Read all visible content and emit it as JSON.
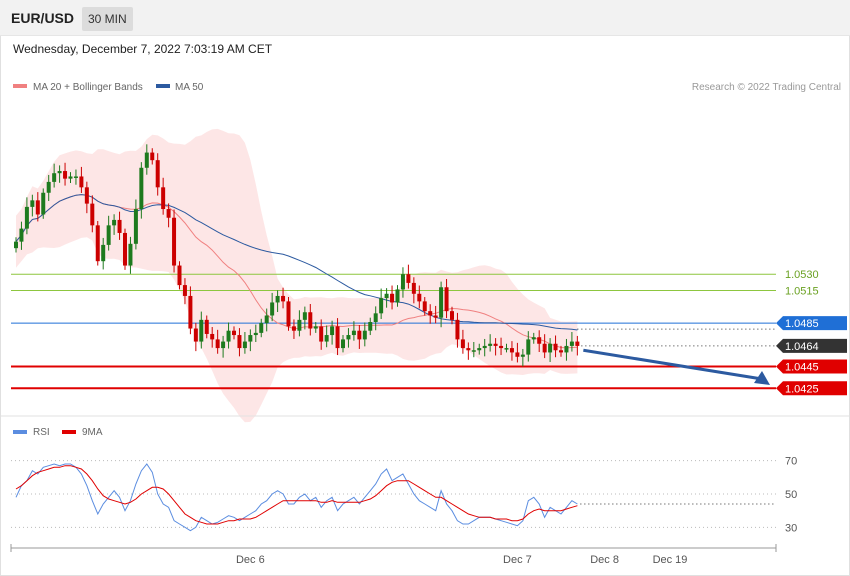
{
  "header": {
    "symbol": "EUR/USD",
    "timeframe": "30 MIN",
    "datetime": "Wednesday, December 7, 2022 7:03:19 AM CET"
  },
  "legend": {
    "ma20_label": "MA 20 + Bollinger Bands",
    "ma50_label": "MA 50",
    "copyright": "Research © 2022 Trading Central",
    "rsi_label": "RSI",
    "rsi_ma_label": "9MA"
  },
  "colors": {
    "bull": "#1e7a1e",
    "bear": "#cc0000",
    "ma20": "#f08080",
    "ma50": "#2c5aa0",
    "band_fill": "#fde3e3",
    "resistance": "#8dc63f",
    "pivot": "#1f6fd6",
    "support": "#e00000",
    "last_price_bg": "#333333",
    "rsi": "#5b8de0",
    "rsi_ma": "#e00000",
    "arrow": "#2c5aa0"
  },
  "chart_data": [
    {
      "type": "candlestick",
      "title": "",
      "ylim": [
        1.0405,
        1.0695
      ],
      "levels": [
        {
          "value": 1.053,
          "label": "1.0530",
          "kind": "resistance"
        },
        {
          "value": 1.0515,
          "label": "1.0515",
          "kind": "resistance"
        },
        {
          "value": 1.0485,
          "label": "1.0485",
          "kind": "pivot"
        },
        {
          "value": 1.0445,
          "label": "1.0445",
          "kind": "support"
        },
        {
          "value": 1.0425,
          "label": "1.0425",
          "kind": "support"
        }
      ],
      "last_price": {
        "value": 1.0464,
        "label": "1.0464"
      },
      "forecast_arrow": {
        "from": 1.046,
        "to": 1.0428
      },
      "closes": [
        1.056,
        1.0572,
        1.0592,
        1.0598,
        1.0585,
        1.0605,
        1.0615,
        1.0623,
        1.0625,
        1.0618,
        1.062,
        1.062,
        1.061,
        1.0595,
        1.0575,
        1.0542,
        1.0557,
        1.0575,
        1.058,
        1.0568,
        1.0538,
        1.0558,
        1.059,
        1.0628,
        1.0642,
        1.0635,
        1.061,
        1.059,
        1.0582,
        1.0538,
        1.052,
        1.051,
        1.048,
        1.0468,
        1.0488,
        1.0475,
        1.047,
        1.0462,
        1.0468,
        1.0478,
        1.0474,
        1.0462,
        1.0468,
        1.0474,
        1.0476,
        1.0485,
        1.0492,
        1.0504,
        1.051,
        1.0505,
        1.0482,
        1.0478,
        1.0488,
        1.0495,
        1.048,
        1.0482,
        1.0468,
        1.0474,
        1.0482,
        1.0462,
        1.047,
        1.0474,
        1.0478,
        1.047,
        1.0478,
        1.0486,
        1.0494,
        1.0508,
        1.0512,
        1.0504,
        1.0516,
        1.053,
        1.0522,
        1.0512,
        1.0505,
        1.0496,
        1.0492,
        1.049,
        1.0518,
        1.0496,
        1.0488,
        1.047,
        1.0462,
        1.046,
        1.046,
        1.0462,
        1.0464,
        1.0466,
        1.0464,
        1.0462,
        1.0462,
        1.0458,
        1.0454,
        1.0456,
        1.047,
        1.0472,
        1.0466,
        1.0458,
        1.0466,
        1.046,
        1.0458,
        1.0464,
        1.0468,
        1.0464
      ],
      "x_ticks": [
        {
          "index": 43,
          "label": "Dec 6"
        },
        {
          "index": 92,
          "label": "Dec 7"
        },
        {
          "index": 108,
          "label": "Dec 8"
        },
        {
          "index": 120,
          "label": "Dec 19"
        }
      ]
    },
    {
      "type": "line",
      "title": "RSI",
      "ylim": [
        20,
        80
      ],
      "yticks": [
        70,
        50,
        30
      ],
      "series": [
        {
          "name": "RSI",
          "values": [
            48,
            55,
            58,
            64,
            62,
            66,
            67,
            68,
            67,
            68,
            68,
            66,
            62,
            55,
            46,
            38,
            44,
            48,
            52,
            48,
            40,
            46,
            56,
            64,
            68,
            63,
            50,
            44,
            42,
            34,
            32,
            30,
            28,
            30,
            36,
            34,
            32,
            33,
            35,
            37,
            36,
            34,
            36,
            38,
            40,
            44,
            46,
            50,
            52,
            50,
            44,
            44,
            48,
            50,
            46,
            48,
            42,
            46,
            48,
            40,
            44,
            46,
            48,
            44,
            48,
            52,
            56,
            62,
            65,
            58,
            60,
            62,
            56,
            50,
            46,
            44,
            42,
            40,
            52,
            44,
            40,
            34,
            32,
            32,
            34,
            36,
            36,
            36,
            35,
            34,
            33,
            32,
            31,
            34,
            46,
            48,
            44,
            36,
            42,
            40,
            38,
            42,
            46,
            44
          ]
        },
        {
          "name": "9MA",
          "values": [
            53,
            55,
            58,
            61,
            63,
            64,
            65,
            66,
            66,
            67,
            67,
            66,
            65,
            62,
            58,
            53,
            49,
            47,
            46,
            45,
            44,
            45,
            47,
            50,
            52,
            54,
            54,
            53,
            50,
            46,
            42,
            38,
            36,
            34,
            33,
            32,
            32,
            32,
            33,
            34,
            34,
            35,
            35,
            35,
            36,
            38,
            40,
            42,
            44,
            46,
            46,
            46,
            46,
            46,
            46,
            46,
            45,
            45,
            46,
            45,
            45,
            45,
            45,
            45,
            46,
            47,
            49,
            52,
            55,
            57,
            58,
            58,
            58,
            56,
            54,
            52,
            50,
            48,
            48,
            46,
            44,
            42,
            40,
            38,
            37,
            36,
            36,
            36,
            35,
            35,
            35,
            34,
            34,
            35,
            38,
            40,
            41,
            40,
            40,
            40,
            40,
            41,
            42,
            43
          ]
        }
      ]
    }
  ]
}
